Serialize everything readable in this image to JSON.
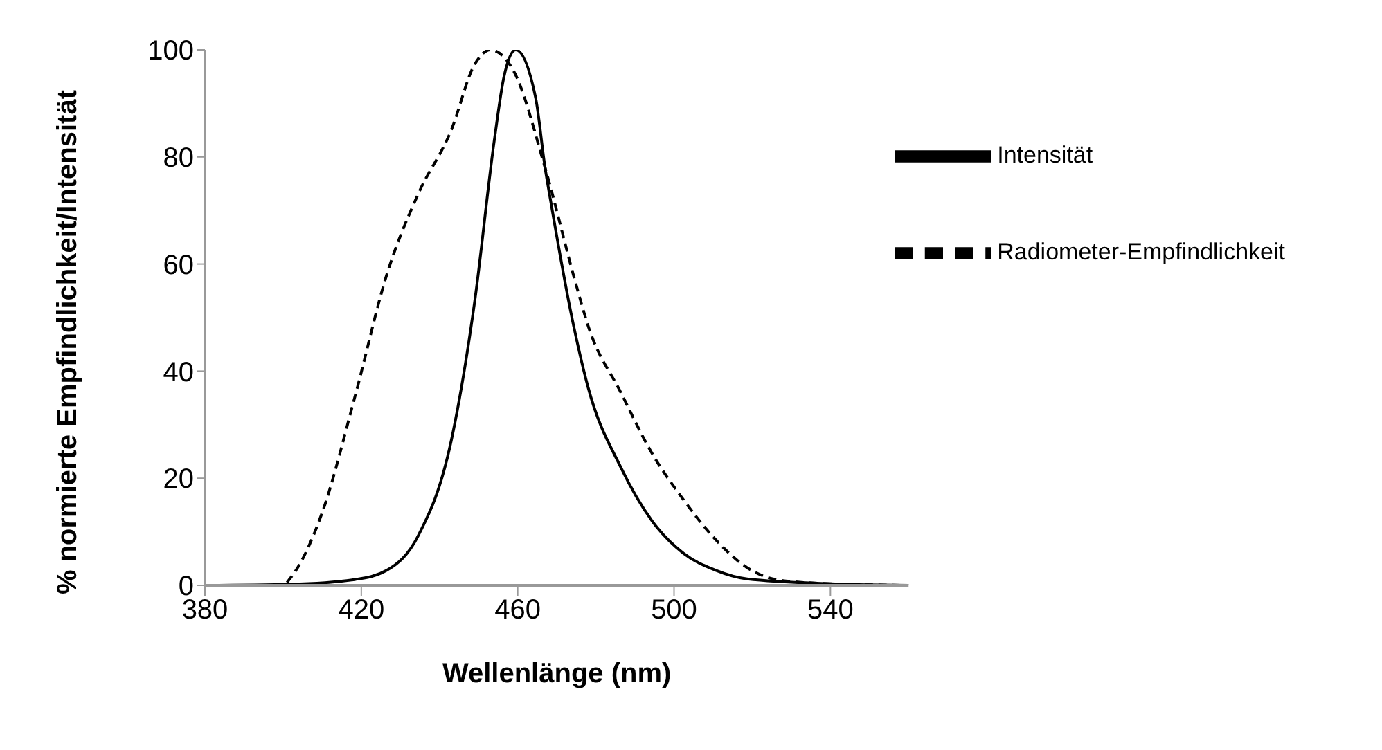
{
  "chart_data": {
    "type": "line",
    "xlabel": "Wellenlänge (nm)",
    "ylabel": "% normierte Empfindlichkeit/Intensität",
    "xlim": [
      380,
      560
    ],
    "xticks": [
      380,
      420,
      460,
      500,
      540
    ],
    "ylim": [
      0,
      100
    ],
    "yticks": [
      0,
      20,
      40,
      60,
      80,
      100
    ],
    "grid": false,
    "legend": "top right",
    "marker": "none",
    "series": [
      {
        "name": "Radiometer-Empfindlichkeit",
        "color": "#000000",
        "line_style": "dashed",
        "x": [
          380,
          400,
          402,
          410,
          418.5,
          426.5,
          434.5,
          443,
          449,
          453,
          459,
          467,
          475,
          478,
          486.4,
          494.4,
          502.4,
          510.7,
          518.7,
          526.7,
          540,
          560
        ],
        "values": [
          0,
          0,
          1.5,
          13.6,
          35.6,
          58,
          73,
          85,
          97.3,
          100,
          96,
          78,
          56,
          48.5,
          36,
          24.6,
          16,
          8.5,
          3.3,
          1,
          0.3,
          0
        ]
      },
      {
        "name": "Intensität",
        "color": "#000000",
        "line_style": "solid",
        "x": [
          380,
          402,
          418.5,
          426.5,
          434.5,
          443,
          449,
          454,
          456.5,
          459.5,
          464.6,
          467,
          468.5,
          474.3,
          478,
          486.4,
          494.4,
          502.4,
          510.7,
          518.7,
          540,
          560
        ],
        "values": [
          0,
          0.2,
          1.1,
          2.8,
          9.2,
          27,
          53,
          83,
          95,
          100,
          91,
          78,
          71.5,
          48.5,
          37,
          22,
          12,
          6,
          2.8,
          1.2,
          0.3,
          0
        ]
      }
    ]
  }
}
